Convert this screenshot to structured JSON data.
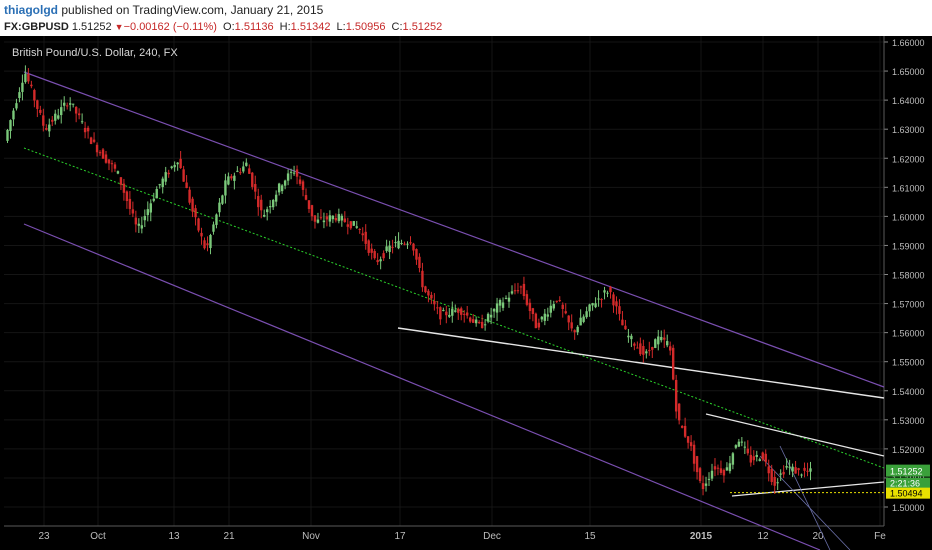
{
  "header": {
    "author": "thiagolgd",
    "published": "published on TradingView.com, January 21, 2015",
    "symbol": "FX:GBPUSD",
    "last": "1.51252",
    "change": "−0.00162 (−0.11%)",
    "open_label": "O:",
    "open": "1.51136",
    "high_label": "H:",
    "high": "1.51342",
    "low_label": "L:",
    "low": "1.50956",
    "close_label": "C:",
    "close": "1.51252"
  },
  "colors": {
    "background": "#000000",
    "bull": "#7ac87a",
    "bear": "#d42a2a",
    "channel": "#7a4fb0",
    "trendline": "#e6e6e6",
    "midline": "#2bd32b",
    "support": "#e8e000"
  },
  "chart_data": {
    "type": "candlestick",
    "title": "British Pound/U.S. Dollar, 240, FX",
    "ylim": [
      1.495,
      1.661
    ],
    "yticks": [
      "1.66000",
      "1.65000",
      "1.64000",
      "1.63000",
      "1.62000",
      "1.61000",
      "1.60000",
      "1.59000",
      "1.58000",
      "1.57000",
      "1.56000",
      "1.55000",
      "1.54000",
      "1.53000",
      "1.52000",
      "1.51000",
      "1.50000"
    ],
    "xticks": [
      "23",
      "Oct",
      "13",
      "21",
      "Nov",
      "17",
      "Dec",
      "15",
      "2015",
      "12",
      "20",
      "Fe"
    ],
    "price_labels": {
      "last": "1.51252",
      "countdown": "2:21:36",
      "support": "1.50494"
    },
    "price_path": [
      {
        "t": 0,
        "v": 1.626
      },
      {
        "t": 0.025,
        "v": 1.65
      },
      {
        "t": 0.05,
        "v": 1.63
      },
      {
        "t": 0.08,
        "v": 1.64
      },
      {
        "t": 0.11,
        "v": 1.625
      },
      {
        "t": 0.14,
        "v": 1.615
      },
      {
        "t": 0.165,
        "v": 1.595
      },
      {
        "t": 0.19,
        "v": 1.61
      },
      {
        "t": 0.215,
        "v": 1.62
      },
      {
        "t": 0.235,
        "v": 1.6
      },
      {
        "t": 0.25,
        "v": 1.588
      },
      {
        "t": 0.275,
        "v": 1.612
      },
      {
        "t": 0.3,
        "v": 1.618
      },
      {
        "t": 0.32,
        "v": 1.6
      },
      {
        "t": 0.345,
        "v": 1.612
      },
      {
        "t": 0.36,
        "v": 1.616
      },
      {
        "t": 0.385,
        "v": 1.598
      },
      {
        "t": 0.41,
        "v": 1.6
      },
      {
        "t": 0.44,
        "v": 1.596
      },
      {
        "t": 0.46,
        "v": 1.584
      },
      {
        "t": 0.48,
        "v": 1.59
      },
      {
        "t": 0.505,
        "v": 1.592
      },
      {
        "t": 0.52,
        "v": 1.575
      },
      {
        "t": 0.54,
        "v": 1.566
      },
      {
        "t": 0.565,
        "v": 1.568
      },
      {
        "t": 0.59,
        "v": 1.562
      },
      {
        "t": 0.615,
        "v": 1.57
      },
      {
        "t": 0.64,
        "v": 1.576
      },
      {
        "t": 0.66,
        "v": 1.562
      },
      {
        "t": 0.685,
        "v": 1.572
      },
      {
        "t": 0.705,
        "v": 1.56
      },
      {
        "t": 0.73,
        "v": 1.57
      },
      {
        "t": 0.75,
        "v": 1.575
      },
      {
        "t": 0.77,
        "v": 1.56
      },
      {
        "t": 0.795,
        "v": 1.552
      },
      {
        "t": 0.81,
        "v": 1.558
      },
      {
        "t": 0.825,
        "v": 1.556
      },
      {
        "t": 0.835,
        "v": 1.53
      },
      {
        "t": 0.85,
        "v": 1.522
      },
      {
        "t": 0.865,
        "v": 1.506
      },
      {
        "t": 0.88,
        "v": 1.514
      },
      {
        "t": 0.895,
        "v": 1.512
      },
      {
        "t": 0.91,
        "v": 1.524
      },
      {
        "t": 0.925,
        "v": 1.516
      },
      {
        "t": 0.94,
        "v": 1.518
      },
      {
        "t": 0.955,
        "v": 1.508
      },
      {
        "t": 0.97,
        "v": 1.514
      },
      {
        "t": 0.985,
        "v": 1.512
      }
    ]
  }
}
